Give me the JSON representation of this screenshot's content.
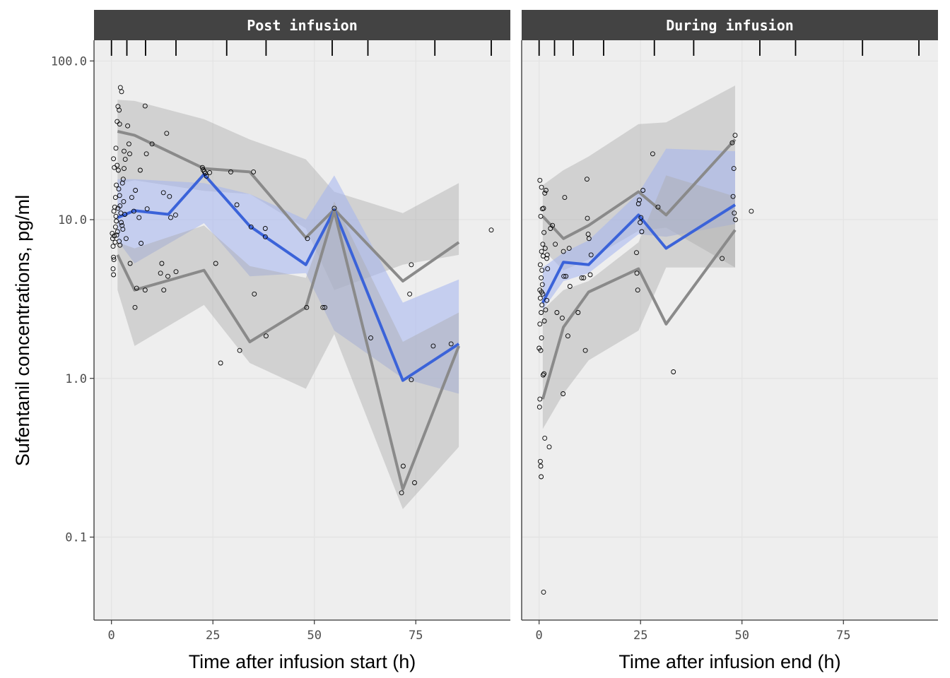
{
  "chart_data": {
    "type": "line",
    "ylabel": "Sufentanil concentrations, pg/ml",
    "y_scale": "log10",
    "ylim": [
      0.03,
      135
    ],
    "y_ticks": [
      {
        "value": 0.1,
        "label": "0.1"
      },
      {
        "value": 1,
        "label": "1.0"
      },
      {
        "value": 10,
        "label": "10.0"
      },
      {
        "value": 100,
        "label": "100.0"
      }
    ],
    "xlim": [
      -4.3,
      98.3
    ],
    "x_ticks": [
      {
        "value": 0,
        "label": "0"
      },
      {
        "value": 25,
        "label": "25"
      },
      {
        "value": 50,
        "label": "50"
      },
      {
        "value": 75,
        "label": "75"
      }
    ],
    "grid": true,
    "colors": {
      "panel_bg": "#eeeeee",
      "strip_bg": "#434343",
      "grid": "#e3e3e3",
      "band_gray": "#aaaaaa",
      "band_blue": "#a4b5f0",
      "line_gray": "#8a8a8a",
      "line_blue": "#3b63d9",
      "point": "#000000"
    },
    "panels": [
      {
        "strip": "Post infusion",
        "xlabel": "Time after infusion start (h)",
        "bin_ticks": [
          0,
          3.8,
          8.4,
          15.9,
          28.4,
          38.1,
          54.4,
          63.2,
          79.7,
          93.6
        ],
        "pi_bands": [
          {
            "role": "upper",
            "x": [
              1.5,
              5.7,
              22.8,
              34.1,
              47.9,
              54.9,
              71.8,
              85.6
            ],
            "lower": [
              16.8,
              17.7,
              15.2,
              14.5,
              8.8,
              3.6,
              5.2,
              6.0
            ],
            "upper": [
              57.0,
              56.0,
              43.0,
              32.0,
              24.0,
              15.0,
              11.0,
              17.0
            ]
          },
          {
            "role": "median",
            "x": [
              1.5,
              5.7,
              22.8,
              34.1,
              47.9,
              54.9,
              71.8,
              85.6
            ],
            "lower": [
              7.4,
              5.3,
              9.5,
              4.4,
              4.6,
              2.0,
              1.0,
              0.8
            ],
            "upper": [
              18.0,
              18.0,
              17.0,
              14.5,
              10.0,
              19.0,
              3.0,
              4.2
            ]
          },
          {
            "role": "lower",
            "x": [
              1.5,
              5.7,
              22.8,
              34.1,
              47.9,
              54.9,
              71.8,
              85.6
            ],
            "lower": [
              3.6,
              1.6,
              2.9,
              1.25,
              0.86,
              1.9,
              0.15,
              0.37
            ],
            "upper": [
              7.2,
              6.6,
              9.2,
              5.1,
              4.3,
              13.0,
              1.7,
              2.6
            ]
          }
        ],
        "series": [
          {
            "name": "",
            "role": "obs_p95",
            "x": [
              1.5,
              5.7,
              22.8,
              34.1,
              47.9,
              54.9,
              71.8,
              85.6
            ],
            "values": [
              36,
              34,
              21,
              20,
              7.7,
              11.6,
              4.1,
              7.2
            ]
          },
          {
            "name": "",
            "role": "obs_median",
            "x": [
              1.5,
              5.7,
              22.8,
              14.0,
              34.1,
              47.9,
              54.9,
              71.8,
              85.6
            ],
            "values": [
              10.3,
              11.4,
              19.3,
              10.8,
              9.1,
              5.2,
              11.5,
              0.97,
              1.65
            ]
          },
          {
            "name": "",
            "role": "obs_p5",
            "x": [
              1.5,
              5.7,
              22.8,
              34.1,
              47.9,
              54.9,
              71.8,
              85.6
            ],
            "values": [
              6.0,
              3.6,
              4.8,
              1.7,
              2.8,
              11.3,
              0.2,
              1.6
            ]
          }
        ],
        "points": [
          [
            0.2,
            8.2
          ],
          [
            0.3,
            7.6
          ],
          [
            0.4,
            6.8
          ],
          [
            0.5,
            5.8
          ],
          [
            0.6,
            5.6
          ],
          [
            0.4,
            4.9
          ],
          [
            0.5,
            4.5
          ],
          [
            0.7,
            7.9
          ],
          [
            0.9,
            7.2
          ],
          [
            1.0,
            9.0
          ],
          [
            1.1,
            10.5
          ],
          [
            0.6,
            11.3
          ],
          [
            0.8,
            12.0
          ],
          [
            1.0,
            13.8
          ],
          [
            1.2,
            16.5
          ],
          [
            0.7,
            21.3
          ],
          [
            0.5,
            24.2
          ],
          [
            1.1,
            28.2
          ],
          [
            1.4,
            41.5
          ],
          [
            1.6,
            51.7
          ],
          [
            1.9,
            49.0
          ],
          [
            2.2,
            68.0
          ],
          [
            2.5,
            64.0
          ],
          [
            2.0,
            40.0
          ],
          [
            1.4,
            22.0
          ],
          [
            1.7,
            20.5
          ],
          [
            1.8,
            15.6
          ],
          [
            2.0,
            14.2
          ],
          [
            2.1,
            12.2
          ],
          [
            2.3,
            11.0
          ],
          [
            2.4,
            9.6
          ],
          [
            2.6,
            9.2
          ],
          [
            2.8,
            8.7
          ],
          [
            1.5,
            8.4
          ],
          [
            1.9,
            7.3
          ],
          [
            2.1,
            6.9
          ],
          [
            1.3,
            8.0
          ],
          [
            1.6,
            11.8
          ],
          [
            1.2,
            9.8
          ],
          [
            3.0,
            13.0
          ],
          [
            3.3,
            10.8
          ],
          [
            3.6,
            7.6
          ],
          [
            4.0,
            39.0
          ],
          [
            4.3,
            30.0
          ],
          [
            4.5,
            26.0
          ],
          [
            3.4,
            24.0
          ],
          [
            3.1,
            21.0
          ],
          [
            2.9,
            18.0
          ],
          [
            2.7,
            17.0
          ],
          [
            3.1,
            27.0
          ],
          [
            4.6,
            5.3
          ],
          [
            5.0,
            13.8
          ],
          [
            5.5,
            11.3
          ],
          [
            5.9,
            15.3
          ],
          [
            6.2,
            3.7
          ],
          [
            6.8,
            10.3
          ],
          [
            7.1,
            20.5
          ],
          [
            7.3,
            7.1
          ],
          [
            8.3,
            3.6
          ],
          [
            8.8,
            11.7
          ],
          [
            5.8,
            2.8
          ],
          [
            8.3,
            52.0
          ],
          [
            8.6,
            26.0
          ],
          [
            10.0,
            30.0
          ],
          [
            12.1,
            4.6
          ],
          [
            12.4,
            5.3
          ],
          [
            12.8,
            14.8
          ],
          [
            12.9,
            3.6
          ],
          [
            13.6,
            35.0
          ],
          [
            14.3,
            14.0
          ],
          [
            13.9,
            4.4
          ],
          [
            14.6,
            10.3
          ],
          [
            15.8,
            10.7
          ],
          [
            15.9,
            4.7
          ],
          [
            22.4,
            21.3
          ],
          [
            22.6,
            20.6
          ],
          [
            22.9,
            20.1
          ],
          [
            23.1,
            19.6
          ],
          [
            23.4,
            18.8
          ],
          [
            24.2,
            19.8
          ],
          [
            25.7,
            5.3
          ],
          [
            26.9,
            1.25
          ],
          [
            29.4,
            20.0
          ],
          [
            30.9,
            12.4
          ],
          [
            31.6,
            1.5
          ],
          [
            34.4,
            9.0
          ],
          [
            35.0,
            20.0
          ],
          [
            35.2,
            3.4
          ],
          [
            37.9,
            8.8
          ],
          [
            37.9,
            7.8
          ],
          [
            38.1,
            1.85
          ],
          [
            48.3,
            7.6
          ],
          [
            48.1,
            2.8
          ],
          [
            52.1,
            2.8
          ],
          [
            52.6,
            2.8
          ],
          [
            54.9,
            11.8
          ],
          [
            63.9,
            1.8
          ],
          [
            71.5,
            0.19
          ],
          [
            71.9,
            0.28
          ],
          [
            73.5,
            3.4
          ],
          [
            73.9,
            5.2
          ],
          [
            74.7,
            0.22
          ],
          [
            73.9,
            0.98
          ],
          [
            79.3,
            1.6
          ],
          [
            83.7,
            1.65
          ],
          [
            93.6,
            8.6
          ]
        ]
      },
      {
        "strip": "During infusion",
        "xlabel": "Time after infusion end (h)",
        "bin_ticks": [
          0,
          3.8,
          8.4,
          15.9,
          28.4,
          38.1,
          54.4,
          63.2,
          79.7,
          93.6
        ],
        "pi_bands": [
          {
            "role": "upper",
            "x": [
              0.9,
              6.0,
              12.2,
              24.5,
              31.3,
              48.3
            ],
            "lower": [
              6.5,
              4.8,
              5.6,
              8.5,
              8.9,
              5.0
            ],
            "upper": [
              16.5,
              20.5,
              25.0,
              40.0,
              41.0,
              70.0
            ]
          },
          {
            "role": "median",
            "x": [
              0.9,
              6.0,
              12.2,
              24.5,
              31.3,
              48.3
            ],
            "lower": [
              2.7,
              4.1,
              4.6,
              8.1,
              7.8,
              9.4
            ],
            "upper": [
              5.0,
              6.2,
              7.4,
              14.7,
              28.0,
              27.0
            ]
          },
          {
            "role": "lower",
            "x": [
              0.9,
              6.0,
              12.2,
              24.5,
              31.3,
              48.3
            ],
            "lower": [
              0.48,
              0.8,
              1.3,
              2.0,
              5.0,
              5.0
            ],
            "upper": [
              2.7,
              3.6,
              4.1,
              7.2,
              19.0,
              14.0
            ]
          }
        ],
        "series": [
          {
            "name": "",
            "role": "obs_p95",
            "x": [
              0.9,
              6.0,
              12.2,
              24.5,
              31.3,
              48.3
            ],
            "values": [
              10.5,
              7.6,
              9.2,
              15.0,
              10.7,
              32.0
            ]
          },
          {
            "name": "",
            "role": "obs_median",
            "x": [
              0.9,
              6.0,
              12.2,
              24.5,
              31.3,
              48.3
            ],
            "values": [
              3.0,
              5.4,
              5.2,
              10.7,
              6.6,
              12.4
            ]
          },
          {
            "name": "",
            "role": "obs_p5",
            "x": [
              0.9,
              6.0,
              12.2,
              24.5,
              31.3,
              48.3
            ],
            "values": [
              0.74,
              2.1,
              3.5,
              4.9,
              2.2,
              8.6
            ]
          }
        ],
        "points": [
          [
            0.0,
            1.55
          ],
          [
            0.1,
            0.66
          ],
          [
            0.2,
            0.74
          ],
          [
            0.3,
            0.3
          ],
          [
            0.4,
            0.28
          ],
          [
            0.5,
            0.24
          ],
          [
            0.4,
            1.5
          ],
          [
            0.6,
            1.8
          ],
          [
            0.2,
            2.2
          ],
          [
            0.5,
            2.6
          ],
          [
            0.7,
            2.9
          ],
          [
            0.3,
            3.2
          ],
          [
            0.6,
            3.5
          ],
          [
            0.9,
            3.4
          ],
          [
            0.2,
            3.6
          ],
          [
            0.8,
            3.9
          ],
          [
            0.5,
            4.3
          ],
          [
            0.7,
            4.8
          ],
          [
            0.3,
            5.2
          ],
          [
            1.0,
            5.9
          ],
          [
            0.6,
            6.3
          ],
          [
            0.9,
            7.0
          ],
          [
            0.4,
            10.5
          ],
          [
            0.8,
            11.7
          ],
          [
            0.2,
            17.7
          ],
          [
            0.6,
            16.0
          ],
          [
            1.1,
            11.8
          ],
          [
            1.4,
            14.7
          ],
          [
            1.7,
            15.3
          ],
          [
            1.2,
            8.3
          ],
          [
            1.5,
            6.6
          ],
          [
            1.9,
            5.7
          ],
          [
            2.1,
            4.9
          ],
          [
            1.3,
            2.3
          ],
          [
            1.6,
            2.7
          ],
          [
            1.9,
            3.1
          ],
          [
            1.0,
            1.05
          ],
          [
            1.2,
            1.07
          ],
          [
            1.4,
            0.42
          ],
          [
            2.5,
            0.37
          ],
          [
            1.1,
            0.045
          ],
          [
            2.0,
            6.0
          ],
          [
            2.8,
            8.8
          ],
          [
            3.3,
            9.2
          ],
          [
            4.0,
            7.0
          ],
          [
            4.4,
            2.6
          ],
          [
            5.7,
            2.4
          ],
          [
            5.9,
            0.8
          ],
          [
            6.0,
            6.3
          ],
          [
            6.1,
            4.4
          ],
          [
            6.3,
            13.8
          ],
          [
            6.6,
            4.4
          ],
          [
            7.1,
            1.85
          ],
          [
            7.4,
            6.6
          ],
          [
            7.6,
            3.8
          ],
          [
            9.6,
            2.6
          ],
          [
            10.5,
            4.3
          ],
          [
            11.0,
            4.3
          ],
          [
            11.4,
            1.5
          ],
          [
            11.8,
            18.0
          ],
          [
            11.9,
            10.2
          ],
          [
            12.1,
            8.1
          ],
          [
            12.3,
            7.6
          ],
          [
            12.6,
            4.5
          ],
          [
            12.8,
            6.0
          ],
          [
            24.0,
            6.2
          ],
          [
            24.1,
            4.6
          ],
          [
            24.3,
            3.6
          ],
          [
            24.5,
            12.6
          ],
          [
            24.7,
            13.3
          ],
          [
            24.9,
            9.6
          ],
          [
            25.1,
            10.3
          ],
          [
            25.3,
            8.4
          ],
          [
            25.6,
            15.3
          ],
          [
            28.0,
            26.0
          ],
          [
            29.3,
            12.0
          ],
          [
            33.1,
            1.1
          ],
          [
            45.1,
            5.7
          ],
          [
            47.6,
            30.5
          ],
          [
            47.8,
            14.0
          ],
          [
            48.0,
            21.0
          ],
          [
            48.1,
            11.0
          ],
          [
            48.3,
            34.0
          ],
          [
            48.4,
            10.0
          ],
          [
            52.3,
            11.3
          ]
        ]
      }
    ]
  }
}
